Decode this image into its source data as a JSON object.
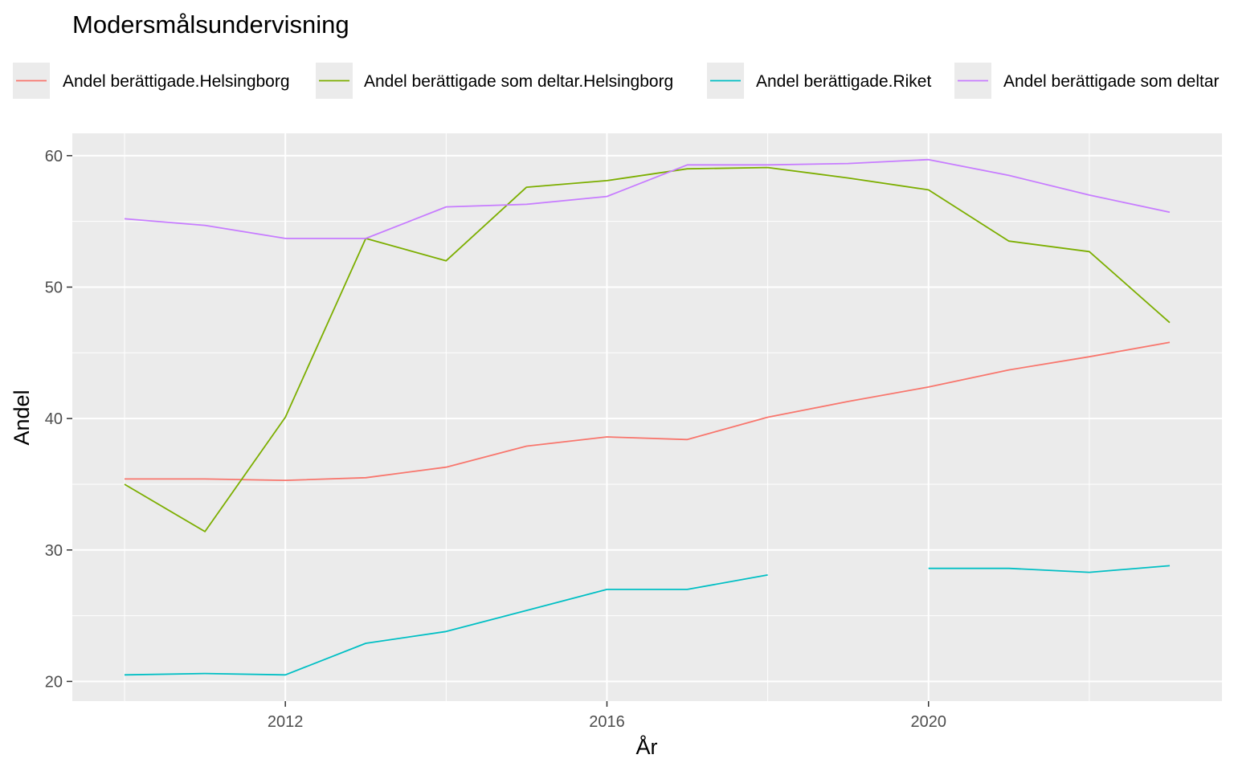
{
  "chart_data": {
    "type": "line",
    "title": "Modersmålsundervisning",
    "xlabel": "År",
    "ylabel": "Andel",
    "xlim": [
      2009.35,
      2023.65
    ],
    "ylim": [
      18.5,
      61.7
    ],
    "x_ticks": [
      2012,
      2016,
      2020
    ],
    "y_ticks": [
      20,
      30,
      40,
      50,
      60
    ],
    "grid": true,
    "legend_position": "top",
    "background": "#ebebeb",
    "series": [
      {
        "name": "Andel berättigade.Helsingborg",
        "color": "#f8766d",
        "x": [
          2010,
          2011,
          2012,
          2013,
          2014,
          2015,
          2016,
          2017,
          2018,
          2019,
          2020,
          2021,
          2022,
          2023
        ],
        "y": [
          35.4,
          35.4,
          35.3,
          35.5,
          36.3,
          37.9,
          38.6,
          38.4,
          40.1,
          41.3,
          42.4,
          43.7,
          44.7,
          45.8
        ]
      },
      {
        "name": "Andel berättigade som deltar.Helsingborg",
        "color": "#7cae00",
        "x": [
          2010,
          2011,
          2012,
          2013,
          2014,
          2015,
          2016,
          2017,
          2018,
          2019,
          2020,
          2021,
          2022,
          2023
        ],
        "y": [
          35.0,
          31.4,
          40.1,
          53.7,
          52.0,
          57.6,
          58.1,
          59.0,
          59.1,
          58.3,
          57.4,
          53.5,
          52.7,
          47.3
        ]
      },
      {
        "name": "Andel berättigade.Riket",
        "color": "#00bfc4",
        "x": [
          2010,
          2011,
          2012,
          2013,
          2014,
          2015,
          2016,
          2017,
          2018,
          2019,
          2020,
          2021,
          2022,
          2023
        ],
        "y": [
          20.5,
          20.6,
          20.5,
          22.9,
          23.8,
          25.4,
          27.0,
          27.0,
          28.1,
          null,
          28.6,
          28.6,
          28.3,
          28.8
        ]
      },
      {
        "name": "Andel berättigade som deltar",
        "color": "#c77cff",
        "x": [
          2010,
          2011,
          2012,
          2013,
          2014,
          2015,
          2016,
          2017,
          2018,
          2019,
          2020,
          2021,
          2022,
          2023
        ],
        "y": [
          55.2,
          54.7,
          53.7,
          53.7,
          56.1,
          56.3,
          56.9,
          59.3,
          59.3,
          59.4,
          59.7,
          58.5,
          57.0,
          55.7
        ]
      }
    ]
  }
}
